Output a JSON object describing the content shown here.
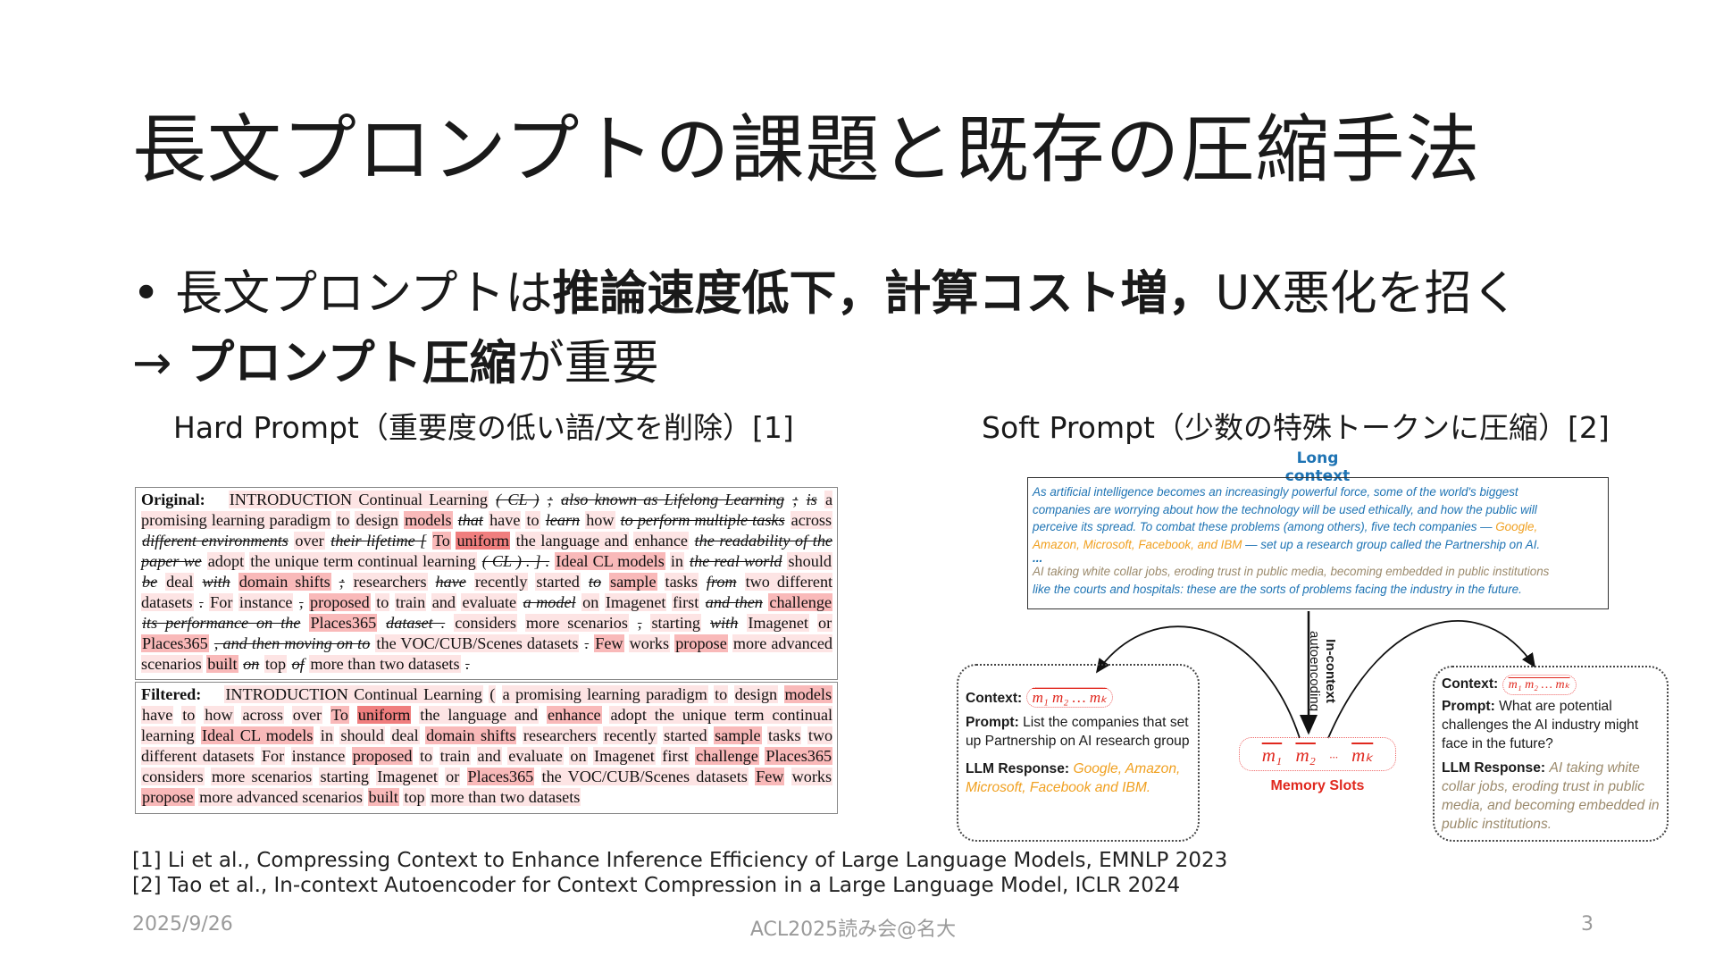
{
  "title": "長文プロンプトの課題と既存の圧縮手法",
  "bullets": {
    "line1_pre": "• 長文プロンプトは",
    "line1_bold": "推論速度低下，計算コスト増，",
    "line1_post": "UX悪化を招く",
    "line2_pre": "→ ",
    "line2_bold": "プロンプト圧縮",
    "line2_post": "が重要"
  },
  "hard_prompt": {
    "heading": "Hard Prompt（重要度の低い語/文を削除）[1]",
    "colors": {
      "light": "#fde4e4",
      "medium": "#f9b9b9",
      "strong": "#f07e7e"
    },
    "original_label": "Original:",
    "original_tokens": [
      [
        "INTRODUCTION Continual Learning",
        1
      ],
      [
        "( CL )",
        -1
      ],
      [
        ";",
        -1
      ],
      [
        "also known as Lifelong Learning",
        -1
      ],
      [
        ";",
        -1
      ],
      [
        "is",
        -1
      ],
      [
        "a promising learning paradigm",
        1
      ],
      [
        "to",
        1
      ],
      [
        "design",
        1
      ],
      [
        "models",
        2
      ],
      [
        "that",
        -1
      ],
      [
        "have",
        1
      ],
      [
        "to",
        1
      ],
      [
        "learn",
        -1
      ],
      [
        "how",
        1
      ],
      [
        "to perform multiple tasks",
        -1
      ],
      [
        "across",
        1
      ],
      [
        "different environments",
        -1
      ],
      [
        "over",
        1
      ],
      [
        "their lifetime [",
        -1
      ],
      [
        "To",
        2
      ],
      [
        "uniform",
        3
      ],
      [
        "the language and",
        1
      ],
      [
        "enhance",
        1
      ],
      [
        "the readability of the paper we",
        -1
      ],
      [
        "adopt",
        1
      ],
      [
        "the unique term continual learning",
        1
      ],
      [
        "( CL ) . ] .",
        -1
      ],
      [
        "Ideal CL models",
        2
      ],
      [
        "in",
        1
      ],
      [
        "the real world",
        -1
      ],
      [
        "should",
        1
      ],
      [
        "be",
        -1
      ],
      [
        "deal",
        1
      ],
      [
        "with",
        -1
      ],
      [
        "domain shifts",
        2
      ],
      [
        ";",
        -1
      ],
      [
        "researchers",
        1
      ],
      [
        "have",
        -1
      ],
      [
        "recently",
        1
      ],
      [
        "started",
        1
      ],
      [
        "to",
        -1
      ],
      [
        "sample",
        2
      ],
      [
        "tasks",
        1
      ],
      [
        "from",
        -1
      ],
      [
        "two different datasets",
        1
      ],
      [
        ".",
        -1
      ],
      [
        "For",
        1
      ],
      [
        "instance",
        1
      ],
      [
        ",",
        -1
      ],
      [
        "proposed",
        2
      ],
      [
        "to",
        1
      ],
      [
        "train",
        1
      ],
      [
        "and",
        1
      ],
      [
        "evaluate",
        1
      ],
      [
        "a model",
        -1
      ],
      [
        "on",
        1
      ],
      [
        "Imagenet",
        1
      ],
      [
        "first",
        1
      ],
      [
        "and then",
        -1
      ],
      [
        "challenge",
        2
      ],
      [
        "its performance on the",
        -1
      ],
      [
        "Places365",
        2
      ],
      [
        "dataset .",
        -1
      ],
      [
        "considers",
        1
      ],
      [
        "more scenarios",
        1
      ],
      [
        ",",
        -1
      ],
      [
        "starting",
        1
      ],
      [
        "with",
        -1
      ],
      [
        "Imagenet",
        1
      ],
      [
        "or",
        1
      ],
      [
        "Places365",
        2
      ],
      [
        ", and then moving on to",
        -1
      ],
      [
        "the VOC/CUB/Scenes datasets",
        1
      ],
      [
        ".",
        -1
      ],
      [
        "Few",
        2
      ],
      [
        "works",
        1
      ],
      [
        "propose",
        2
      ],
      [
        "more advanced scenarios",
        1
      ],
      [
        "built",
        2
      ],
      [
        "on",
        -1
      ],
      [
        "top",
        1
      ],
      [
        "of",
        -1
      ],
      [
        "more than two datasets",
        1
      ],
      [
        ".",
        -1
      ]
    ],
    "filtered_label": "Filtered:",
    "filtered_tokens": [
      [
        "INTRODUCTION Continual Learning",
        1
      ],
      [
        "(",
        1
      ],
      [
        "a promising learning paradigm",
        1
      ],
      [
        "to",
        1
      ],
      [
        "design",
        1
      ],
      [
        "models",
        2
      ],
      [
        "have",
        1
      ],
      [
        "to",
        1
      ],
      [
        "how",
        1
      ],
      [
        "across",
        1
      ],
      [
        "over",
        1
      ],
      [
        "To",
        2
      ],
      [
        "uniform",
        3
      ],
      [
        "the language and",
        1
      ],
      [
        "enhance",
        2
      ],
      [
        "adopt the unique term continual learning",
        1
      ],
      [
        "Ideal CL models",
        2
      ],
      [
        "in",
        1
      ],
      [
        "should",
        1
      ],
      [
        "deal",
        1
      ],
      [
        "domain shifts",
        2
      ],
      [
        "researchers",
        1
      ],
      [
        "recently",
        1
      ],
      [
        "started",
        1
      ],
      [
        "sample",
        2
      ],
      [
        "tasks",
        1
      ],
      [
        "two different datasets",
        1
      ],
      [
        "For",
        1
      ],
      [
        "instance",
        1
      ],
      [
        "proposed",
        2
      ],
      [
        "to",
        1
      ],
      [
        "train",
        1
      ],
      [
        "and",
        1
      ],
      [
        "evaluate",
        1
      ],
      [
        "on",
        1
      ],
      [
        "Imagenet",
        1
      ],
      [
        "first",
        1
      ],
      [
        "challenge",
        2
      ],
      [
        "Places365",
        2
      ],
      [
        "considers",
        1
      ],
      [
        "more scenarios",
        1
      ],
      [
        "starting",
        1
      ],
      [
        "Imagenet",
        1
      ],
      [
        "or",
        1
      ],
      [
        "Places365",
        2
      ],
      [
        "the VOC/CUB/Scenes datasets",
        1
      ],
      [
        "Few",
        2
      ],
      [
        "works",
        1
      ],
      [
        "propose",
        2
      ],
      [
        "more advanced scenarios",
        1
      ],
      [
        "built",
        2
      ],
      [
        "top",
        1
      ],
      [
        "more than two datasets",
        1
      ]
    ]
  },
  "soft_prompt": {
    "heading": "Soft Prompt（少数の特殊トークンに圧縮）[2]",
    "colors": {
      "blue": "#1f74b4",
      "orange": "#f0a020",
      "brown": "#9b8a6c",
      "red": "#e0281e"
    },
    "long_context_title": "Long context",
    "long_context": {
      "l1": "As artificial intelligence becomes an increasingly powerful force, some of the world's biggest",
      "l2": "companies are worrying about how the technology will be used ethically, and how the public will",
      "l3a": "perceive its spread. To combat these problems (among others), five tech companies — ",
      "l3b": "Google,",
      "l4a": "Amazon, Microsoft, Facebook, and IBM",
      "l4b": " — set up a research group called the Partnership on AI.",
      "ellipsis": "...",
      "l5": "AI taking white collar jobs, eroding trust in public media, becoming embedded in public institutions",
      "l6": "like the courts and hospitals: these are the sorts of problems facing the industry in the future."
    },
    "arrow_label_1": "In-context",
    "arrow_label_2": "autoencoding",
    "memory_slots": {
      "m1": "m₁",
      "m2": "m₂",
      "dots": "···",
      "mk": "mₖ",
      "label": "Memory Slots"
    },
    "context_slots": "m₁ m₂ … mₖ",
    "left_example": {
      "context_label": "Context:",
      "prompt_label": "Prompt:",
      "prompt": "List the companies that set up Partnership on AI research group",
      "response_label": "LLM Response:",
      "response": "Google, Amazon, Microsoft, Facebook and IBM."
    },
    "right_example": {
      "context_label": "Context:",
      "prompt_label": "Prompt:",
      "prompt": "What are potential challenges the AI industry might face in the future?",
      "response_label": "LLM Response:",
      "response": "AI taking white collar jobs, eroding trust in public media, and becoming embedded in public institutions."
    }
  },
  "references": [
    "[1] Li et al., Compressing Context to Enhance Inference Efficiency of Large Language Models, EMNLP 2023",
    "[2] Tao et al., In-context Autoencoder for Context Compression in a Large Language Model, ICLR 2024"
  ],
  "footer": {
    "date": "2025/9/26",
    "center": "ACL2025読み会@名大",
    "page": "3"
  }
}
